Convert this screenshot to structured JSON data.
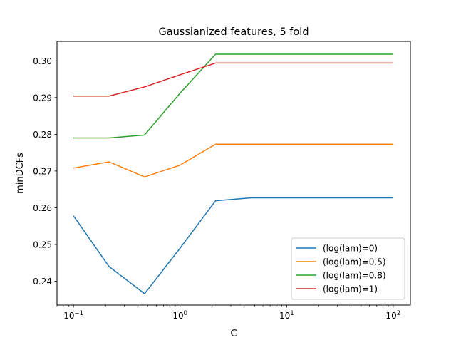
{
  "chart_data": {
    "type": "line",
    "title": "Gaussianized features, 5 fold",
    "xlabel": "C",
    "ylabel": "minDCFs",
    "xscale": "log",
    "xlim": [
      0.07,
      145
    ],
    "ylim": [
      0.2335,
      0.3053
    ],
    "grid": false,
    "legend_position": "lower-right",
    "x": [
      0.1,
      0.2154,
      0.4642,
      1.0,
      2.1544,
      4.6416,
      10.0,
      21.544,
      46.416,
      100.0
    ],
    "xticks": [
      {
        "value": 0.1,
        "base": "10",
        "exp": "−1"
      },
      {
        "value": 1,
        "base": "10",
        "exp": "0"
      },
      {
        "value": 10,
        "base": "10",
        "exp": "1"
      },
      {
        "value": 100,
        "base": "10",
        "exp": "2"
      }
    ],
    "yticks": [
      {
        "value": 0.24,
        "label": "0.24"
      },
      {
        "value": 0.25,
        "label": "0.25"
      },
      {
        "value": 0.26,
        "label": "0.26"
      },
      {
        "value": 0.27,
        "label": "0.27"
      },
      {
        "value": 0.28,
        "label": "0.28"
      },
      {
        "value": 0.29,
        "label": "0.29"
      },
      {
        "value": 0.3,
        "label": "0.30"
      }
    ],
    "series": [
      {
        "name": " (log(lam)=0)",
        "color": "#1f77b4",
        "values": [
          0.2578,
          0.244,
          0.2366,
          0.249,
          0.2619,
          0.2627,
          0.2627,
          0.2627,
          0.2627,
          0.2627
        ]
      },
      {
        "name": " (log(lam)=0.5)",
        "color": "#ff7f0e",
        "values": [
          0.2708,
          0.2725,
          0.2684,
          0.2716,
          0.2773,
          0.2773,
          0.2773,
          0.2773,
          0.2773,
          0.2773
        ]
      },
      {
        "name": " (log(lam)=0.8)",
        "color": "#2ca02c",
        "values": [
          0.279,
          0.279,
          0.2798,
          0.2912,
          0.3018,
          0.3018,
          0.3018,
          0.3018,
          0.3018,
          0.3018
        ]
      },
      {
        "name": " (log(lam)=1)",
        "color": "#d62728",
        "values": [
          0.2904,
          0.2904,
          0.2929,
          0.2962,
          0.2994,
          0.2994,
          0.2994,
          0.2994,
          0.2994,
          0.2994
        ]
      }
    ]
  }
}
